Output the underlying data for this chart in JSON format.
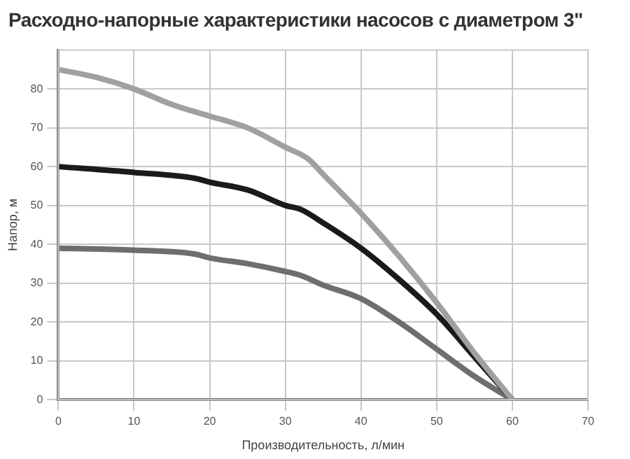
{
  "chart_data": {
    "type": "line",
    "title": "Расходно-напорные характеристики насосов с диаметром 3\"",
    "xlabel": "Производительность, л/мин",
    "ylabel": "Напор, м",
    "xlim": [
      0,
      70
    ],
    "xticks": [
      0,
      10,
      20,
      30,
      40,
      50,
      60,
      70
    ],
    "ylim": [
      0,
      90
    ],
    "yticks": [
      0,
      10,
      20,
      30,
      40,
      50,
      60,
      70,
      80
    ],
    "grid": true,
    "marker": "none",
    "line_style": "solid",
    "series": [
      {
        "color": "#a0a0a0",
        "x": [
          0,
          5,
          10,
          15,
          20,
          25,
          30,
          33,
          35,
          40,
          45,
          50,
          55,
          60
        ],
        "values": [
          85,
          83,
          80,
          76,
          73,
          70,
          65,
          62,
          58,
          48,
          37,
          25,
          12,
          0
        ]
      },
      {
        "color": "#1a1a1a",
        "x": [
          0,
          10,
          18,
          20,
          25,
          30,
          32,
          35,
          40,
          45,
          50,
          55,
          60
        ],
        "values": [
          60,
          58.5,
          57,
          56,
          54,
          50,
          49,
          45.5,
          39,
          31,
          22,
          11,
          0
        ]
      },
      {
        "color": "#6e6e6e",
        "x": [
          0,
          10,
          18,
          20,
          25,
          30,
          32,
          35,
          40,
          45,
          50,
          55,
          60
        ],
        "values": [
          39,
          38.5,
          37.5,
          36.5,
          35,
          33,
          32,
          29.5,
          26,
          20,
          13,
          6,
          0
        ]
      }
    ]
  }
}
